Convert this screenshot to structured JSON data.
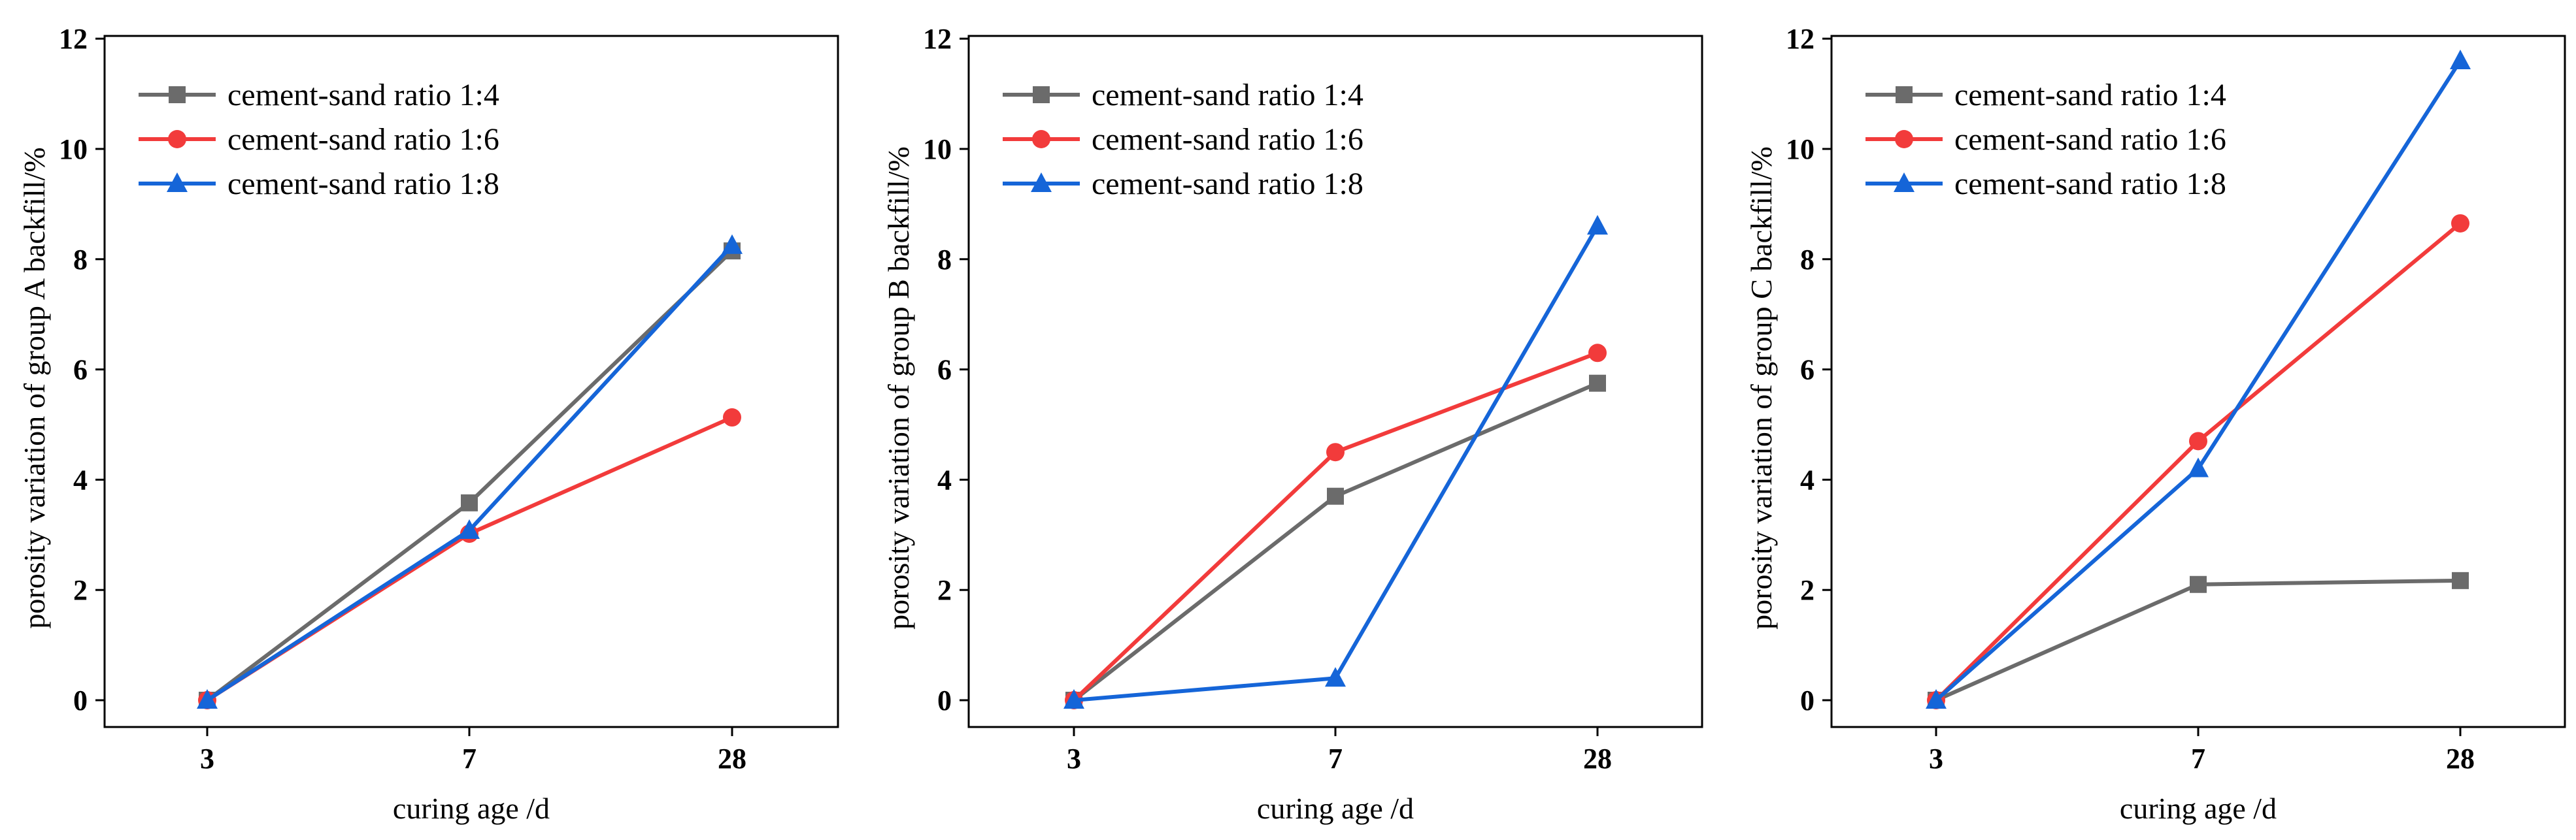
{
  "chart_data": [
    {
      "type": "line",
      "title": "",
      "xlabel": "curing age /d",
      "ylabel": "porosity variation of group A backfill/%",
      "categories": [
        "3",
        "7",
        "28"
      ],
      "ylim": [
        0,
        12
      ],
      "yticks": [
        "0",
        "2",
        "4",
        "6",
        "8",
        "10",
        "12"
      ],
      "grid": false,
      "legend": "top-left",
      "series": [
        {
          "name": "cement-sand ratio  1:4",
          "color": "#6b6b6b",
          "marker": "square",
          "values": [
            0,
            3.58,
            8.15
          ]
        },
        {
          "name": "cement-sand ratio  1:6",
          "color": "#f23b3b",
          "marker": "circle",
          "values": [
            0,
            3.02,
            5.13
          ]
        },
        {
          "name": "cement-sand ratio  1:8",
          "color": "#1565d8",
          "marker": "triangle",
          "values": [
            0,
            3.08,
            8.25
          ]
        }
      ]
    },
    {
      "type": "line",
      "title": "",
      "xlabel": "curing age /d",
      "ylabel": "porosity variation of group B backfill/%",
      "categories": [
        "3",
        "7",
        "28"
      ],
      "ylim": [
        0,
        12
      ],
      "yticks": [
        "0",
        "2",
        "4",
        "6",
        "8",
        "10",
        "12"
      ],
      "grid": false,
      "legend": "top-left",
      "series": [
        {
          "name": "cement-sand ratio  1:4",
          "color": "#6b6b6b",
          "marker": "square",
          "values": [
            0,
            3.7,
            5.75
          ]
        },
        {
          "name": "cement-sand ratio  1:6",
          "color": "#f23b3b",
          "marker": "circle",
          "values": [
            0,
            4.5,
            6.3
          ]
        },
        {
          "name": "cement-sand ratio  1:8",
          "color": "#1565d8",
          "marker": "triangle",
          "values": [
            0,
            0.4,
            8.6
          ]
        }
      ]
    },
    {
      "type": "line",
      "title": "",
      "xlabel": "curing age /d",
      "ylabel": "porosity variation of group C backfill/%",
      "categories": [
        "3",
        "7",
        "28"
      ],
      "ylim": [
        0,
        12
      ],
      "yticks": [
        "0",
        "2",
        "4",
        "6",
        "8",
        "10",
        "12"
      ],
      "grid": false,
      "legend": "top-left",
      "series": [
        {
          "name": "cement-sand ratio  1:4",
          "color": "#6b6b6b",
          "marker": "square",
          "values": [
            0,
            2.1,
            2.17
          ]
        },
        {
          "name": "cement-sand ratio  1:6",
          "color": "#f23b3b",
          "marker": "circle",
          "values": [
            0,
            4.7,
            8.65
          ]
        },
        {
          "name": "cement-sand ratio  1:8",
          "color": "#1565d8",
          "marker": "triangle",
          "values": [
            0,
            4.2,
            11.6
          ]
        }
      ]
    }
  ]
}
